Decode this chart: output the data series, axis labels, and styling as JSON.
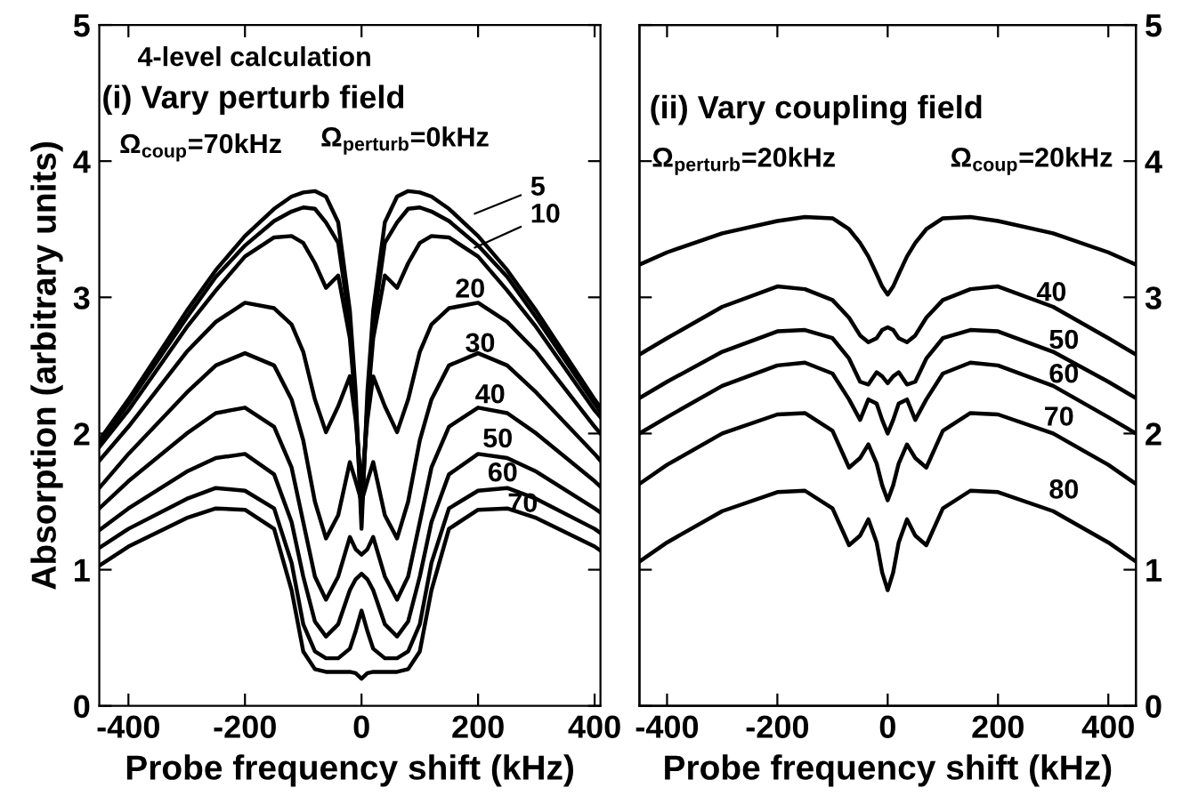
{
  "chart_data": [
    {
      "type": "line",
      "xlabel": "Probe frequency shift (kHz)",
      "ylabel": "Absorption (arbitrary units)",
      "xlim": [
        -450,
        410
      ],
      "xticks": [
        -400,
        -200,
        0,
        200,
        400
      ],
      "ylim": [
        0,
        5
      ],
      "yticks": [
        0,
        1,
        2,
        3,
        4,
        5
      ],
      "annotations": [
        "4-level calculation",
        "(i) Vary perturb field",
        "Ω$_{coup}$=70kHz"
      ],
      "x": [
        -450,
        -400,
        -300,
        -250,
        -200,
        -150,
        -120,
        -100,
        -80,
        -61,
        -40,
        -20,
        -10,
        0,
        10,
        20,
        40,
        61,
        80,
        100,
        120,
        150,
        200,
        250,
        300,
        400,
        410
      ],
      "series": [
        {
          "name": "Ω$_{perturb}$=0kHz",
          "color": "#000000",
          "values": [
            1.95,
            2.25,
            2.9,
            3.2,
            3.45,
            3.65,
            3.74,
            3.77,
            3.78,
            3.74,
            3.55,
            2.9,
            2.3,
            1.3,
            2.3,
            2.9,
            3.55,
            3.74,
            3.78,
            3.77,
            3.74,
            3.65,
            3.45,
            3.2,
            2.9,
            2.25,
            2.19
          ]
        },
        {
          "name": "5",
          "color": "#000000",
          "values": [
            1.93,
            2.22,
            2.85,
            3.15,
            3.38,
            3.56,
            3.63,
            3.66,
            3.65,
            3.55,
            3.4,
            2.8,
            2.2,
            1.4,
            2.2,
            2.8,
            3.4,
            3.55,
            3.65,
            3.66,
            3.63,
            3.56,
            3.38,
            3.15,
            2.85,
            2.22,
            2.16
          ]
        },
        {
          "name": "10",
          "color": "#000000",
          "values": [
            1.9,
            2.17,
            2.78,
            3.05,
            3.3,
            3.44,
            3.45,
            3.4,
            3.25,
            3.07,
            3.16,
            2.7,
            2.2,
            1.5,
            2.2,
            2.7,
            3.16,
            3.07,
            3.25,
            3.4,
            3.45,
            3.44,
            3.3,
            3.05,
            2.78,
            2.17,
            2.12
          ]
        },
        {
          "name": "20",
          "color": "#000000",
          "values": [
            1.8,
            2.05,
            2.6,
            2.82,
            2.96,
            2.92,
            2.8,
            2.6,
            2.25,
            2.01,
            2.2,
            2.42,
            2.1,
            1.6,
            2.1,
            2.42,
            2.2,
            2.01,
            2.25,
            2.6,
            2.8,
            2.92,
            2.96,
            2.82,
            2.6,
            2.05,
            2.0
          ]
        },
        {
          "name": "30",
          "color": "#000000",
          "values": [
            1.6,
            1.85,
            2.3,
            2.5,
            2.59,
            2.5,
            2.25,
            1.95,
            1.5,
            1.23,
            1.4,
            1.79,
            1.65,
            1.5,
            1.65,
            1.79,
            1.4,
            1.23,
            1.5,
            1.95,
            2.25,
            2.5,
            2.59,
            2.5,
            2.3,
            1.85,
            1.8
          ]
        },
        {
          "name": "40",
          "color": "#000000",
          "values": [
            1.45,
            1.65,
            2.0,
            2.15,
            2.19,
            2.05,
            1.75,
            1.35,
            0.95,
            0.78,
            0.95,
            1.24,
            1.15,
            1.11,
            1.15,
            1.24,
            0.95,
            0.78,
            0.95,
            1.35,
            1.75,
            2.05,
            2.19,
            2.15,
            2.0,
            1.65,
            1.61
          ]
        },
        {
          "name": "50",
          "color": "#000000",
          "values": [
            1.29,
            1.45,
            1.72,
            1.82,
            1.85,
            1.7,
            1.35,
            0.95,
            0.62,
            0.51,
            0.6,
            0.85,
            0.93,
            0.97,
            0.93,
            0.85,
            0.6,
            0.51,
            0.62,
            0.95,
            1.35,
            1.7,
            1.85,
            1.82,
            1.72,
            1.45,
            1.42
          ]
        },
        {
          "name": "60",
          "color": "#000000",
          "values": [
            1.16,
            1.3,
            1.52,
            1.6,
            1.58,
            1.45,
            1.05,
            0.6,
            0.4,
            0.35,
            0.35,
            0.42,
            0.55,
            0.7,
            0.55,
            0.42,
            0.35,
            0.35,
            0.4,
            0.6,
            1.05,
            1.45,
            1.58,
            1.6,
            1.52,
            1.3,
            1.27
          ]
        },
        {
          "name": "70",
          "color": "#000000",
          "values": [
            1.03,
            1.17,
            1.38,
            1.45,
            1.44,
            1.3,
            0.85,
            0.4,
            0.27,
            0.25,
            0.25,
            0.25,
            0.24,
            0.2,
            0.24,
            0.25,
            0.25,
            0.25,
            0.27,
            0.4,
            0.85,
            1.3,
            1.44,
            1.45,
            1.38,
            1.17,
            1.14
          ]
        }
      ]
    },
    {
      "type": "line",
      "xlabel": "Probe frequency shift (kHz)",
      "xlim": [
        -450,
        450
      ],
      "xticks": [
        -400,
        -200,
        0,
        200,
        400
      ],
      "y2lim": [
        0,
        5
      ],
      "y2ticks": [
        0,
        1,
        2,
        3,
        4,
        5
      ],
      "annotations": [
        "(ii) Vary coupling field",
        "Ω$_{perturb}$=20kHz"
      ],
      "x": [
        -450,
        -400,
        -300,
        -200,
        -150,
        -100,
        -70,
        -50,
        -35,
        -20,
        -10,
        0,
        10,
        20,
        35,
        50,
        70,
        100,
        150,
        200,
        300,
        400,
        450
      ],
      "series": [
        {
          "name": "Ω$_{coup}$=20kHz",
          "color": "#000000",
          "axis": "y2",
          "values": [
            3.24,
            3.33,
            3.47,
            3.56,
            3.59,
            3.58,
            3.5,
            3.4,
            3.3,
            3.17,
            3.08,
            3.02,
            3.08,
            3.17,
            3.3,
            3.4,
            3.5,
            3.58,
            3.59,
            3.56,
            3.47,
            3.33,
            3.24
          ]
        },
        {
          "name": "40",
          "color": "#000000",
          "axis": "y2",
          "values": [
            2.58,
            2.7,
            2.93,
            3.08,
            3.06,
            2.98,
            2.85,
            2.72,
            2.67,
            2.7,
            2.76,
            2.78,
            2.76,
            2.7,
            2.67,
            2.72,
            2.85,
            2.98,
            3.06,
            3.08,
            2.93,
            2.7,
            2.58
          ]
        },
        {
          "name": "50",
          "color": "#000000",
          "axis": "y2",
          "values": [
            2.26,
            2.38,
            2.6,
            2.75,
            2.76,
            2.7,
            2.55,
            2.38,
            2.36,
            2.45,
            2.42,
            2.37,
            2.42,
            2.45,
            2.36,
            2.38,
            2.55,
            2.7,
            2.76,
            2.75,
            2.6,
            2.38,
            2.26
          ]
        },
        {
          "name": "60",
          "color": "#000000",
          "axis": "y2",
          "values": [
            2.0,
            2.12,
            2.35,
            2.5,
            2.52,
            2.44,
            2.25,
            2.1,
            2.25,
            2.22,
            2.1,
            2.0,
            2.1,
            2.22,
            2.25,
            2.1,
            2.25,
            2.44,
            2.52,
            2.5,
            2.35,
            2.12,
            2.0
          ]
        },
        {
          "name": "70",
          "color": "#000000",
          "axis": "y2",
          "values": [
            1.63,
            1.77,
            2.0,
            2.14,
            2.15,
            2.02,
            1.75,
            1.82,
            1.92,
            1.78,
            1.62,
            1.51,
            1.62,
            1.78,
            1.92,
            1.82,
            1.75,
            2.02,
            2.15,
            2.14,
            2.0,
            1.77,
            1.63
          ]
        },
        {
          "name": "80",
          "color": "#000000",
          "axis": "y2",
          "values": [
            1.06,
            1.2,
            1.43,
            1.57,
            1.58,
            1.45,
            1.18,
            1.25,
            1.37,
            1.2,
            0.98,
            0.85,
            0.98,
            1.2,
            1.37,
            1.25,
            1.18,
            1.45,
            1.58,
            1.57,
            1.43,
            1.2,
            1.06
          ]
        }
      ]
    }
  ]
}
